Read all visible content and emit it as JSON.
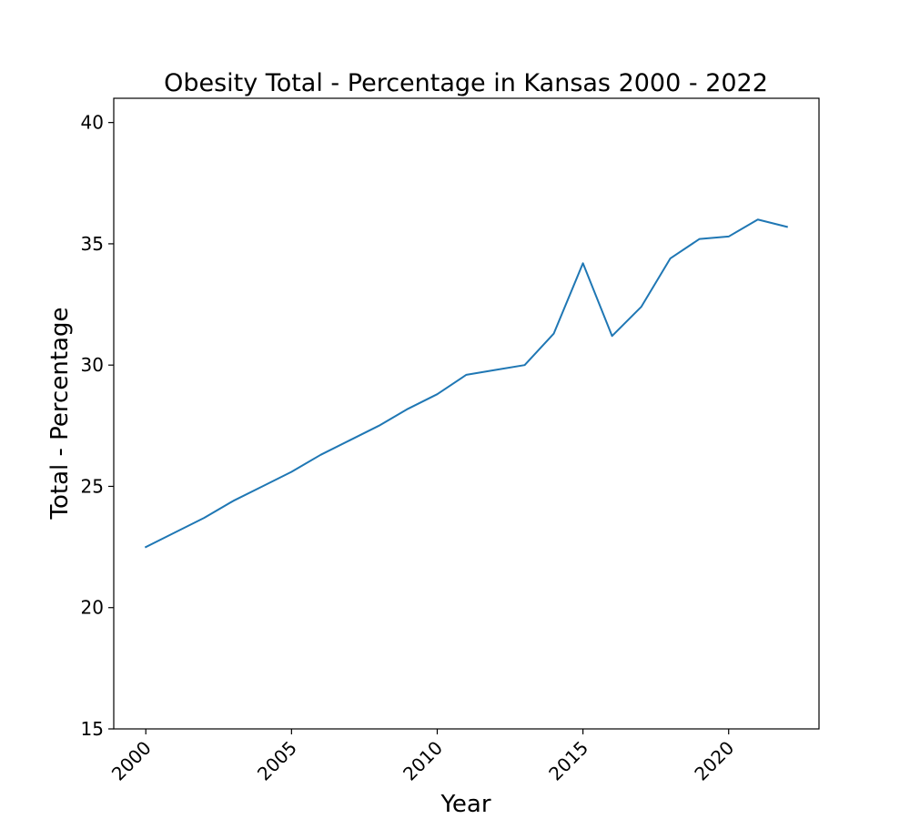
{
  "chart_data": {
    "type": "line",
    "title": "Obesity Total - Percentage in Kansas 2000 - 2022",
    "xlabel": "Year",
    "ylabel": "Total - Percentage",
    "xlim": [
      1998.9,
      2023.1
    ],
    "ylim": [
      15,
      41
    ],
    "x_ticks": [
      2000,
      2005,
      2010,
      2015,
      2020
    ],
    "y_ticks": [
      15,
      20,
      25,
      30,
      35,
      40
    ],
    "x_tick_labels": [
      "2000",
      "2005",
      "2010",
      "2015",
      "2020"
    ],
    "y_tick_labels": [
      "15",
      "20",
      "25",
      "30",
      "35",
      "40"
    ],
    "grid": false,
    "legend": "none",
    "series": [
      {
        "color": "#1f77b4",
        "x": [
          2000,
          2001,
          2002,
          2003,
          2004,
          2005,
          2006,
          2007,
          2008,
          2009,
          2010,
          2011,
          2012,
          2013,
          2014,
          2015,
          2016,
          2017,
          2018,
          2019,
          2020,
          2021,
          2022
        ],
        "values": [
          22.5,
          23.1,
          23.7,
          24.4,
          25.0,
          25.6,
          26.3,
          26.9,
          27.5,
          28.2,
          28.8,
          29.6,
          29.8,
          30.0,
          31.3,
          34.2,
          31.2,
          32.4,
          34.4,
          35.2,
          35.3,
          36.0,
          35.7
        ]
      }
    ]
  }
}
